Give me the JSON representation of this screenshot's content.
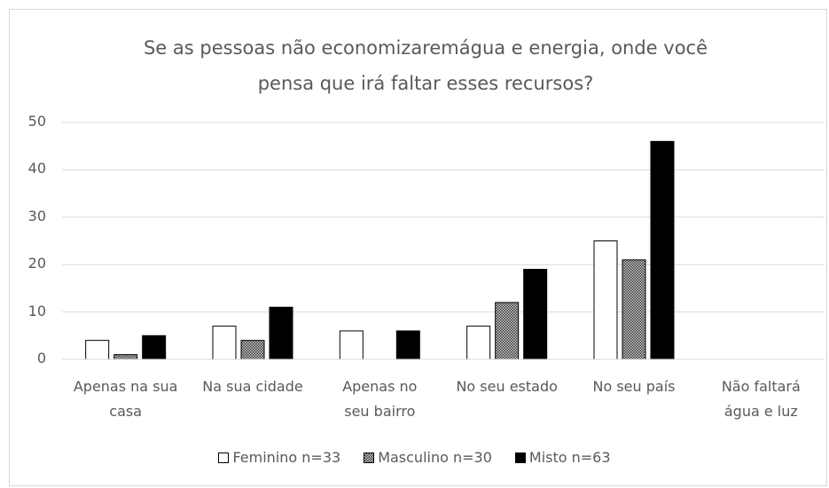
{
  "chart_data": {
    "type": "bar",
    "title": "Se as pessoas não economizaremágua  e energia, onde você\npensa que irá faltar  esses recursos?",
    "categories": [
      "Apenas na sua\ncasa",
      "Na sua cidade",
      "Apenas no\nseu bairro",
      "No seu  estado",
      "No seu país",
      "Não faltará\nágua e luz"
    ],
    "series": [
      {
        "name": "Feminino n=33",
        "color": "#ffffff",
        "values": [
          4,
          7,
          6,
          7,
          25,
          0
        ]
      },
      {
        "name": "Masculino n=30",
        "color": "#8c8c8c",
        "values": [
          1,
          4,
          0,
          12,
          21,
          0
        ]
      },
      {
        "name": "Misto  n=63",
        "color": "#000000",
        "values": [
          5,
          11,
          6,
          19,
          46,
          0
        ]
      }
    ],
    "ylim": [
      0,
      50
    ],
    "yticks": [
      0,
      10,
      20,
      30,
      40,
      50
    ],
    "grid": true,
    "legend": "bottom"
  }
}
